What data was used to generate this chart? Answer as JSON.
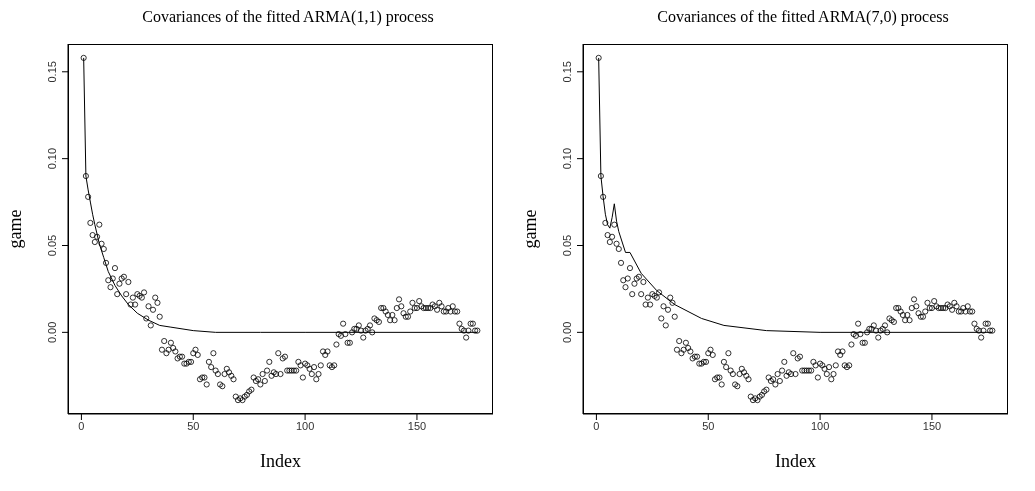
{
  "chart_data": [
    {
      "type": "scatter",
      "title": "Covariances of the fitted ARMA(1,1) process",
      "xlabel": "Index",
      "ylabel": "game",
      "xlim": [
        -6,
        184
      ],
      "ylim": [
        -0.047,
        0.166
      ],
      "xticks": [
        0,
        50,
        100,
        150
      ],
      "yticks": [
        {
          "value": 0,
          "label": "0.00"
        },
        {
          "value": 0.05,
          "label": "0.05"
        },
        {
          "value": 0.1,
          "label": "0.10"
        },
        {
          "value": 0.15,
          "label": "0.15"
        }
      ],
      "series": [
        {
          "marker": "circle",
          "color": "#000000",
          "x": [
            1,
            2,
            3,
            4,
            5,
            6,
            7,
            8,
            9,
            10,
            11,
            12,
            13,
            14,
            15,
            16,
            17,
            18,
            19,
            20,
            21,
            22,
            23,
            24,
            25,
            26,
            27,
            28,
            29,
            30,
            31,
            32,
            33,
            34,
            35,
            36,
            37,
            38,
            39,
            40,
            41,
            42,
            43,
            44,
            45,
            46,
            47,
            48,
            49,
            50,
            51,
            52,
            53,
            54,
            55,
            56,
            57,
            58,
            59,
            60,
            61,
            62,
            63,
            64,
            65,
            66,
            67,
            68,
            69,
            70,
            71,
            72,
            73,
            74,
            75,
            76,
            77,
            78,
            79,
            80,
            81,
            82,
            83,
            84,
            85,
            86,
            87,
            88,
            89,
            90,
            91,
            92,
            93,
            94,
            95,
            96,
            97,
            98,
            99,
            100,
            101,
            102,
            103,
            104,
            105,
            106,
            107,
            108,
            109,
            110,
            111,
            112,
            113,
            114,
            115,
            116,
            117,
            118,
            119,
            120,
            121,
            122,
            123,
            124,
            125,
            126,
            127,
            128,
            129,
            130,
            131,
            132,
            133,
            134,
            135,
            136,
            137,
            138,
            139,
            140,
            141,
            142,
            143,
            144,
            145,
            146,
            147,
            148,
            149,
            150,
            151,
            152,
            153,
            154,
            155,
            156,
            157,
            158,
            159,
            160,
            161,
            162,
            163,
            164,
            165,
            166,
            167,
            168,
            169,
            170,
            171,
            172,
            173,
            174,
            175,
            176,
            177
          ],
          "values": [
            0.158,
            0.09,
            0.078,
            0.063,
            0.056,
            0.052,
            0.055,
            0.062,
            0.051,
            0.048,
            0.04,
            0.03,
            0.026,
            0.031,
            0.037,
            0.022,
            0.028,
            0.031,
            0.032,
            0.022,
            0.029,
            0.016,
            0.02,
            0.016,
            0.022,
            0.021,
            0.02,
            0.023,
            0.008,
            0.015,
            0.004,
            0.013,
            0.02,
            0.017,
            0.009,
            -0.01,
            -0.005,
            -0.012,
            -0.01,
            -0.006,
            -0.009,
            -0.011,
            -0.015,
            -0.014,
            -0.014,
            -0.018,
            -0.018,
            -0.017,
            -0.017,
            -0.012,
            -0.01,
            -0.013,
            -0.027,
            -0.026,
            -0.026,
            -0.03,
            -0.017,
            -0.02,
            -0.012,
            -0.022,
            -0.024,
            -0.03,
            -0.031,
            -0.024,
            -0.021,
            -0.023,
            -0.025,
            -0.027,
            -0.037,
            -0.039,
            -0.038,
            -0.039,
            -0.037,
            -0.036,
            -0.034,
            -0.033,
            -0.026,
            -0.028,
            -0.027,
            -0.03,
            -0.024,
            -0.028,
            -0.022,
            -0.017,
            -0.025,
            -0.023,
            -0.024,
            -0.012,
            -0.024,
            -0.015,
            -0.014,
            -0.022,
            -0.022,
            -0.022,
            -0.022,
            -0.022,
            -0.017,
            -0.019,
            -0.026,
            -0.018,
            -0.019,
            -0.021,
            -0.024,
            -0.02,
            -0.027,
            -0.024,
            -0.019,
            -0.011,
            -0.013,
            -0.011,
            -0.019,
            -0.02,
            -0.019,
            -0.007,
            -0.001,
            -0.002,
            0.005,
            -0.001,
            -0.006,
            -0.006,
            0,
            0.002,
            0.002,
            0.004,
            0.001,
            -0.003,
            0.001,
            0.002,
            0.004,
            0,
            0.008,
            0.007,
            0.006,
            0.014,
            0.014,
            0.012,
            0.01,
            0.007,
            0.01,
            0.007,
            0.014,
            0.019,
            0.015,
            0.011,
            0.009,
            0.009,
            0.012,
            0.017,
            0.014,
            0.014,
            0.018,
            0.015,
            0.014,
            0.014,
            0.014,
            0.014,
            0.016,
            0.015,
            0.013,
            0.017,
            0.015,
            0.012,
            0.012,
            0.014,
            0.012,
            0.015,
            0.012,
            0.012,
            0.005,
            0.002,
            0.001,
            -0.003,
            0.001,
            0.005,
            0.005,
            0.001,
            0.001
          ]
        },
        {
          "type": "line",
          "color": "#000000",
          "x": [
            1,
            2,
            3,
            4,
            5,
            6,
            8,
            10,
            12,
            15,
            18,
            21,
            25,
            30,
            35,
            40,
            50,
            60,
            80,
            100,
            130,
            177
          ],
          "values": [
            0.158,
            0.09,
            0.082,
            0.075,
            0.068,
            0.062,
            0.051,
            0.043,
            0.035,
            0.027,
            0.021,
            0.016,
            0.011,
            0.007,
            0.004,
            0.003,
            0.001,
            0,
            0,
            0,
            0,
            0
          ]
        }
      ]
    },
    {
      "type": "scatter",
      "title": "Covariances of the fitted ARMA(7,0) process",
      "xlabel": "Index",
      "ylabel": "game",
      "xlim": [
        -6,
        184
      ],
      "ylim": [
        -0.047,
        0.166
      ],
      "xticks": [
        0,
        50,
        100,
        150
      ],
      "yticks": [
        {
          "value": 0,
          "label": "0.00"
        },
        {
          "value": 0.05,
          "label": "0.05"
        },
        {
          "value": 0.1,
          "label": "0.10"
        },
        {
          "value": 0.15,
          "label": "0.15"
        }
      ],
      "series": [
        {
          "marker": "circle",
          "color": "#000000",
          "x": [
            1,
            2,
            3,
            4,
            5,
            6,
            7,
            8,
            9,
            10,
            11,
            12,
            13,
            14,
            15,
            16,
            17,
            18,
            19,
            20,
            21,
            22,
            23,
            24,
            25,
            26,
            27,
            28,
            29,
            30,
            31,
            32,
            33,
            34,
            35,
            36,
            37,
            38,
            39,
            40,
            41,
            42,
            43,
            44,
            45,
            46,
            47,
            48,
            49,
            50,
            51,
            52,
            53,
            54,
            55,
            56,
            57,
            58,
            59,
            60,
            61,
            62,
            63,
            64,
            65,
            66,
            67,
            68,
            69,
            70,
            71,
            72,
            73,
            74,
            75,
            76,
            77,
            78,
            79,
            80,
            81,
            82,
            83,
            84,
            85,
            86,
            87,
            88,
            89,
            90,
            91,
            92,
            93,
            94,
            95,
            96,
            97,
            98,
            99,
            100,
            101,
            102,
            103,
            104,
            105,
            106,
            107,
            108,
            109,
            110,
            111,
            112,
            113,
            114,
            115,
            116,
            117,
            118,
            119,
            120,
            121,
            122,
            123,
            124,
            125,
            126,
            127,
            128,
            129,
            130,
            131,
            132,
            133,
            134,
            135,
            136,
            137,
            138,
            139,
            140,
            141,
            142,
            143,
            144,
            145,
            146,
            147,
            148,
            149,
            150,
            151,
            152,
            153,
            154,
            155,
            156,
            157,
            158,
            159,
            160,
            161,
            162,
            163,
            164,
            165,
            166,
            167,
            168,
            169,
            170,
            171,
            172,
            173,
            174,
            175,
            176,
            177
          ],
          "values": [
            0.158,
            0.09,
            0.078,
            0.063,
            0.056,
            0.052,
            0.055,
            0.062,
            0.051,
            0.048,
            0.04,
            0.03,
            0.026,
            0.031,
            0.037,
            0.022,
            0.028,
            0.031,
            0.032,
            0.022,
            0.029,
            0.016,
            0.02,
            0.016,
            0.022,
            0.021,
            0.02,
            0.023,
            0.008,
            0.015,
            0.004,
            0.013,
            0.02,
            0.017,
            0.009,
            -0.01,
            -0.005,
            -0.012,
            -0.01,
            -0.006,
            -0.009,
            -0.011,
            -0.015,
            -0.014,
            -0.014,
            -0.018,
            -0.018,
            -0.017,
            -0.017,
            -0.012,
            -0.01,
            -0.013,
            -0.027,
            -0.026,
            -0.026,
            -0.03,
            -0.017,
            -0.02,
            -0.012,
            -0.022,
            -0.024,
            -0.03,
            -0.031,
            -0.024,
            -0.021,
            -0.023,
            -0.025,
            -0.027,
            -0.037,
            -0.039,
            -0.038,
            -0.039,
            -0.037,
            -0.036,
            -0.034,
            -0.033,
            -0.026,
            -0.028,
            -0.027,
            -0.03,
            -0.024,
            -0.028,
            -0.022,
            -0.017,
            -0.025,
            -0.023,
            -0.024,
            -0.012,
            -0.024,
            -0.015,
            -0.014,
            -0.022,
            -0.022,
            -0.022,
            -0.022,
            -0.022,
            -0.017,
            -0.019,
            -0.026,
            -0.018,
            -0.019,
            -0.021,
            -0.024,
            -0.02,
            -0.027,
            -0.024,
            -0.019,
            -0.011,
            -0.013,
            -0.011,
            -0.019,
            -0.02,
            -0.019,
            -0.007,
            -0.001,
            -0.002,
            0.005,
            -0.001,
            -0.006,
            -0.006,
            0,
            0.002,
            0.002,
            0.004,
            0.001,
            -0.003,
            0.001,
            0.002,
            0.004,
            0,
            0.008,
            0.007,
            0.006,
            0.014,
            0.014,
            0.012,
            0.01,
            0.007,
            0.01,
            0.007,
            0.014,
            0.019,
            0.015,
            0.011,
            0.009,
            0.009,
            0.012,
            0.017,
            0.014,
            0.014,
            0.018,
            0.015,
            0.014,
            0.014,
            0.014,
            0.014,
            0.016,
            0.015,
            0.013,
            0.017,
            0.015,
            0.012,
            0.012,
            0.014,
            0.012,
            0.015,
            0.012,
            0.012,
            0.005,
            0.002,
            0.001,
            -0.003,
            0.001,
            0.005,
            0.005,
            0.001,
            0.001
          ]
        },
        {
          "type": "line",
          "color": "#000000",
          "x": [
            1,
            2,
            3,
            4,
            5,
            6,
            7,
            8,
            9,
            10,
            13,
            15,
            20,
            27,
            35,
            47,
            57,
            76,
            100,
            130,
            177
          ],
          "values": [
            0.158,
            0.09,
            0.078,
            0.068,
            0.062,
            0.06,
            0.066,
            0.074,
            0.064,
            0.058,
            0.046,
            0.046,
            0.034,
            0.024,
            0.016,
            0.008,
            0.004,
            0.001,
            0,
            0,
            0
          ]
        }
      ]
    }
  ]
}
